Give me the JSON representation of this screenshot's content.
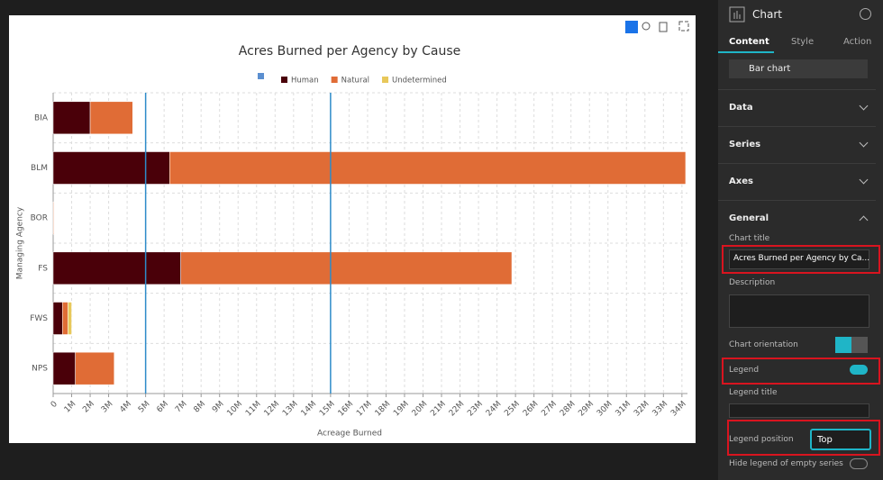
{
  "chart_data": {
    "type": "bar",
    "orientation": "horizontal",
    "stacked": true,
    "title": "Acres Burned per Agency by Cause",
    "x_label": "Acreage Burned",
    "y_label": "Managing Agency",
    "categories": [
      "BIA",
      "BLM",
      "BOR",
      "FS",
      "FWS",
      "NPS"
    ],
    "series": [
      {
        "name": null,
        "color": "#5b8fd0",
        "values": [
          null,
          null,
          null,
          null,
          null,
          null
        ]
      },
      {
        "name": "Human",
        "color": "#4a0009",
        "values": [
          2000000,
          6300000,
          20000,
          6900000,
          500000,
          1200000
        ]
      },
      {
        "name": "Natural",
        "color": "#e06c36",
        "values": [
          2300000,
          27900000,
          30000,
          17900000,
          300000,
          2100000
        ]
      },
      {
        "name": "Undetermined",
        "color": "#e8c85a",
        "values": [
          0,
          0,
          0,
          0,
          200000,
          0
        ]
      }
    ],
    "xlim": [
      0,
      34300000
    ],
    "xticks": [
      0,
      {
        "value": 1000000,
        "label": "1M"
      },
      {
        "value": 2000000,
        "label": "2M"
      },
      {
        "value": 3000000,
        "label": "3M"
      },
      {
        "value": 4000000,
        "label": "4M"
      },
      {
        "value": 5000000,
        "label": "5M"
      },
      {
        "value": 6000000,
        "label": "6M"
      },
      {
        "value": 7000000,
        "label": "7M"
      },
      {
        "value": 8000000,
        "label": "8M"
      },
      {
        "value": 9000000,
        "label": "9M"
      },
      {
        "value": 10000000,
        "label": "10M"
      },
      {
        "value": 11000000,
        "label": "11M"
      },
      {
        "value": 12000000,
        "label": "12M"
      },
      {
        "value": 13000000,
        "label": "13M"
      },
      {
        "value": 14000000,
        "label": "14M"
      },
      {
        "value": 15000000,
        "label": "15M"
      },
      {
        "value": 16000000,
        "label": "16M"
      },
      {
        "value": 17000000,
        "label": "17M"
      },
      {
        "value": 18000000,
        "label": "18M"
      },
      {
        "value": 19000000,
        "label": "19M"
      },
      {
        "value": 20000000,
        "label": "20M"
      },
      {
        "value": 21000000,
        "label": "21M"
      },
      {
        "value": 22000000,
        "label": "22M"
      },
      {
        "value": 23000000,
        "label": "23M"
      },
      {
        "value": 24000000,
        "label": "24M"
      },
      {
        "value": 25000000,
        "label": "25M"
      },
      {
        "value": 26000000,
        "label": "26M"
      },
      {
        "value": 27000000,
        "label": "27M"
      },
      {
        "value": 28000000,
        "label": "28M"
      },
      {
        "value": 29000000,
        "label": "29M"
      },
      {
        "value": 30000000,
        "label": "30M"
      },
      {
        "value": 31000000,
        "label": "31M"
      },
      {
        "value": 32000000,
        "label": "32M"
      },
      {
        "value": 33000000,
        "label": "33M"
      },
      {
        "value": 34000000,
        "label": "34M"
      }
    ],
    "reference_lines": [
      5000000,
      15000000
    ],
    "reference_line_color": "#2e8bc9",
    "grid": true,
    "legend": "top"
  },
  "panel": {
    "title": "Chart",
    "tabs": [
      "Content",
      "Style",
      "Action"
    ],
    "chart_type": "Bar chart",
    "sections": [
      "Data",
      "Series",
      "Axes",
      "General"
    ],
    "chart_title_label": "Chart title",
    "chart_title_value": "Acres Burned per Agency by Ca...",
    "description_label": "Description",
    "orientation_label": "Chart orientation",
    "legend_label": "Legend",
    "legend_title_label": "Legend title",
    "legend_position_label": "Legend position",
    "legend_position_value": "Top",
    "hide_empty_label": "Hide legend of empty series"
  }
}
